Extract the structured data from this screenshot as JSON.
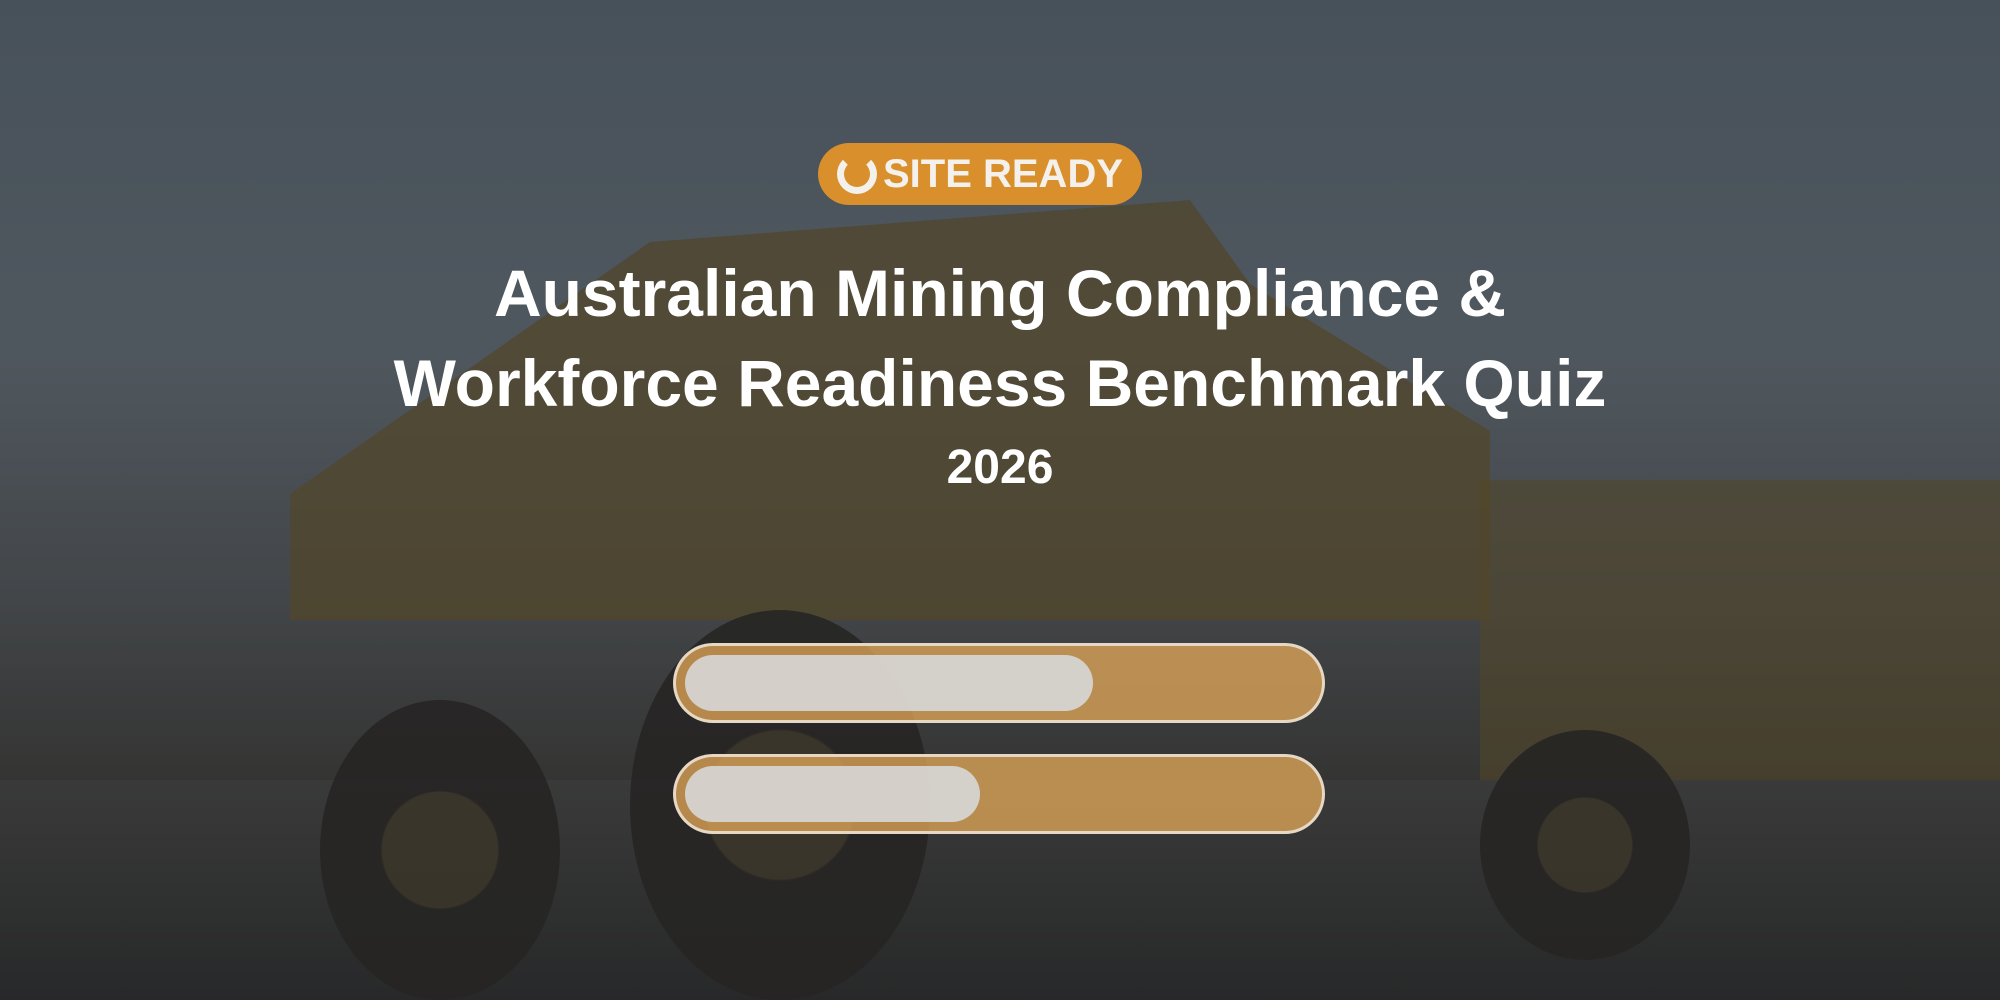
{
  "brand": {
    "name": "SITE READY",
    "color": "#d88f2c",
    "icon": "site-ready-logo-icon"
  },
  "hero": {
    "title_line1": "Australian Mining Compliance &",
    "title_line2": "Workforce Readiness Benchmark Quiz",
    "year": "2026"
  },
  "loading_buttons": [
    {
      "fill_percent": 65
    },
    {
      "fill_percent": 47
    }
  ],
  "colors": {
    "accent": "#d88f2c",
    "button_fill": "#e6aa5a",
    "skeleton": "#d7d7d7"
  }
}
